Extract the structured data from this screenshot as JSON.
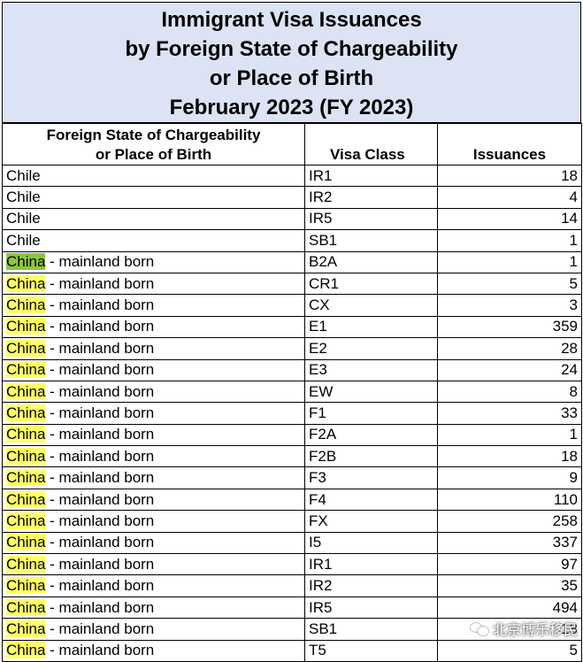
{
  "title": {
    "line1": "Immigrant Visa Issuances",
    "line2": "by Foreign State of Chargeability",
    "line3": "or Place of Birth",
    "line4": "February 2023 (FY 2023)"
  },
  "headers": {
    "state_line1": "Foreign State of Chargeability",
    "state_line2": "or Place of Birth",
    "visa_class": "Visa Class",
    "issuances": "Issuances"
  },
  "rows": [
    {
      "country": "Chile",
      "suffix": "",
      "visa_class": "IR1",
      "issuances": "18"
    },
    {
      "country": "Chile",
      "suffix": "",
      "visa_class": "IR2",
      "issuances": "4"
    },
    {
      "country": "Chile",
      "suffix": "",
      "visa_class": "IR5",
      "issuances": "14"
    },
    {
      "country": "Chile",
      "suffix": "",
      "visa_class": "SB1",
      "issuances": "1"
    },
    {
      "country": "China",
      "suffix": " - mainland born",
      "visa_class": "B2A",
      "issuances": "1"
    },
    {
      "country": "China",
      "suffix": " - mainland born",
      "visa_class": "CR1",
      "issuances": "5"
    },
    {
      "country": "China",
      "suffix": " - mainland born",
      "visa_class": "CX",
      "issuances": "3"
    },
    {
      "country": "China",
      "suffix": " - mainland born",
      "visa_class": "E1",
      "issuances": "359"
    },
    {
      "country": "China",
      "suffix": " - mainland born",
      "visa_class": "E2",
      "issuances": "28"
    },
    {
      "country": "China",
      "suffix": " - mainland born",
      "visa_class": "E3",
      "issuances": "24"
    },
    {
      "country": "China",
      "suffix": " - mainland born",
      "visa_class": "EW",
      "issuances": "8"
    },
    {
      "country": "China",
      "suffix": " - mainland born",
      "visa_class": "F1",
      "issuances": "33"
    },
    {
      "country": "China",
      "suffix": " - mainland born",
      "visa_class": "F2A",
      "issuances": "1"
    },
    {
      "country": "China",
      "suffix": " - mainland born",
      "visa_class": "F2B",
      "issuances": "18"
    },
    {
      "country": "China",
      "suffix": " - mainland born",
      "visa_class": "F3",
      "issuances": "9"
    },
    {
      "country": "China",
      "suffix": " - mainland born",
      "visa_class": "F4",
      "issuances": "110"
    },
    {
      "country": "China",
      "suffix": " - mainland born",
      "visa_class": "FX",
      "issuances": "258"
    },
    {
      "country": "China",
      "suffix": " - mainland born",
      "visa_class": "I5",
      "issuances": "337"
    },
    {
      "country": "China",
      "suffix": " - mainland born",
      "visa_class": "IR1",
      "issuances": "97"
    },
    {
      "country": "China",
      "suffix": " - mainland born",
      "visa_class": "IR2",
      "issuances": "35"
    },
    {
      "country": "China",
      "suffix": " - mainland born",
      "visa_class": "IR5",
      "issuances": "494"
    },
    {
      "country": "China",
      "suffix": " - mainland born",
      "visa_class": "SB1",
      "issuances": "18"
    },
    {
      "country": "China",
      "suffix": " - mainland born",
      "visa_class": "T5",
      "issuances": "5"
    }
  ],
  "highlight": {
    "term": "China",
    "color": "#ffff66",
    "selected_color": "#8cc63e",
    "selected_row": 4
  },
  "watermark": {
    "text": "北京博乐移民",
    "icon": "wechat-icon"
  }
}
